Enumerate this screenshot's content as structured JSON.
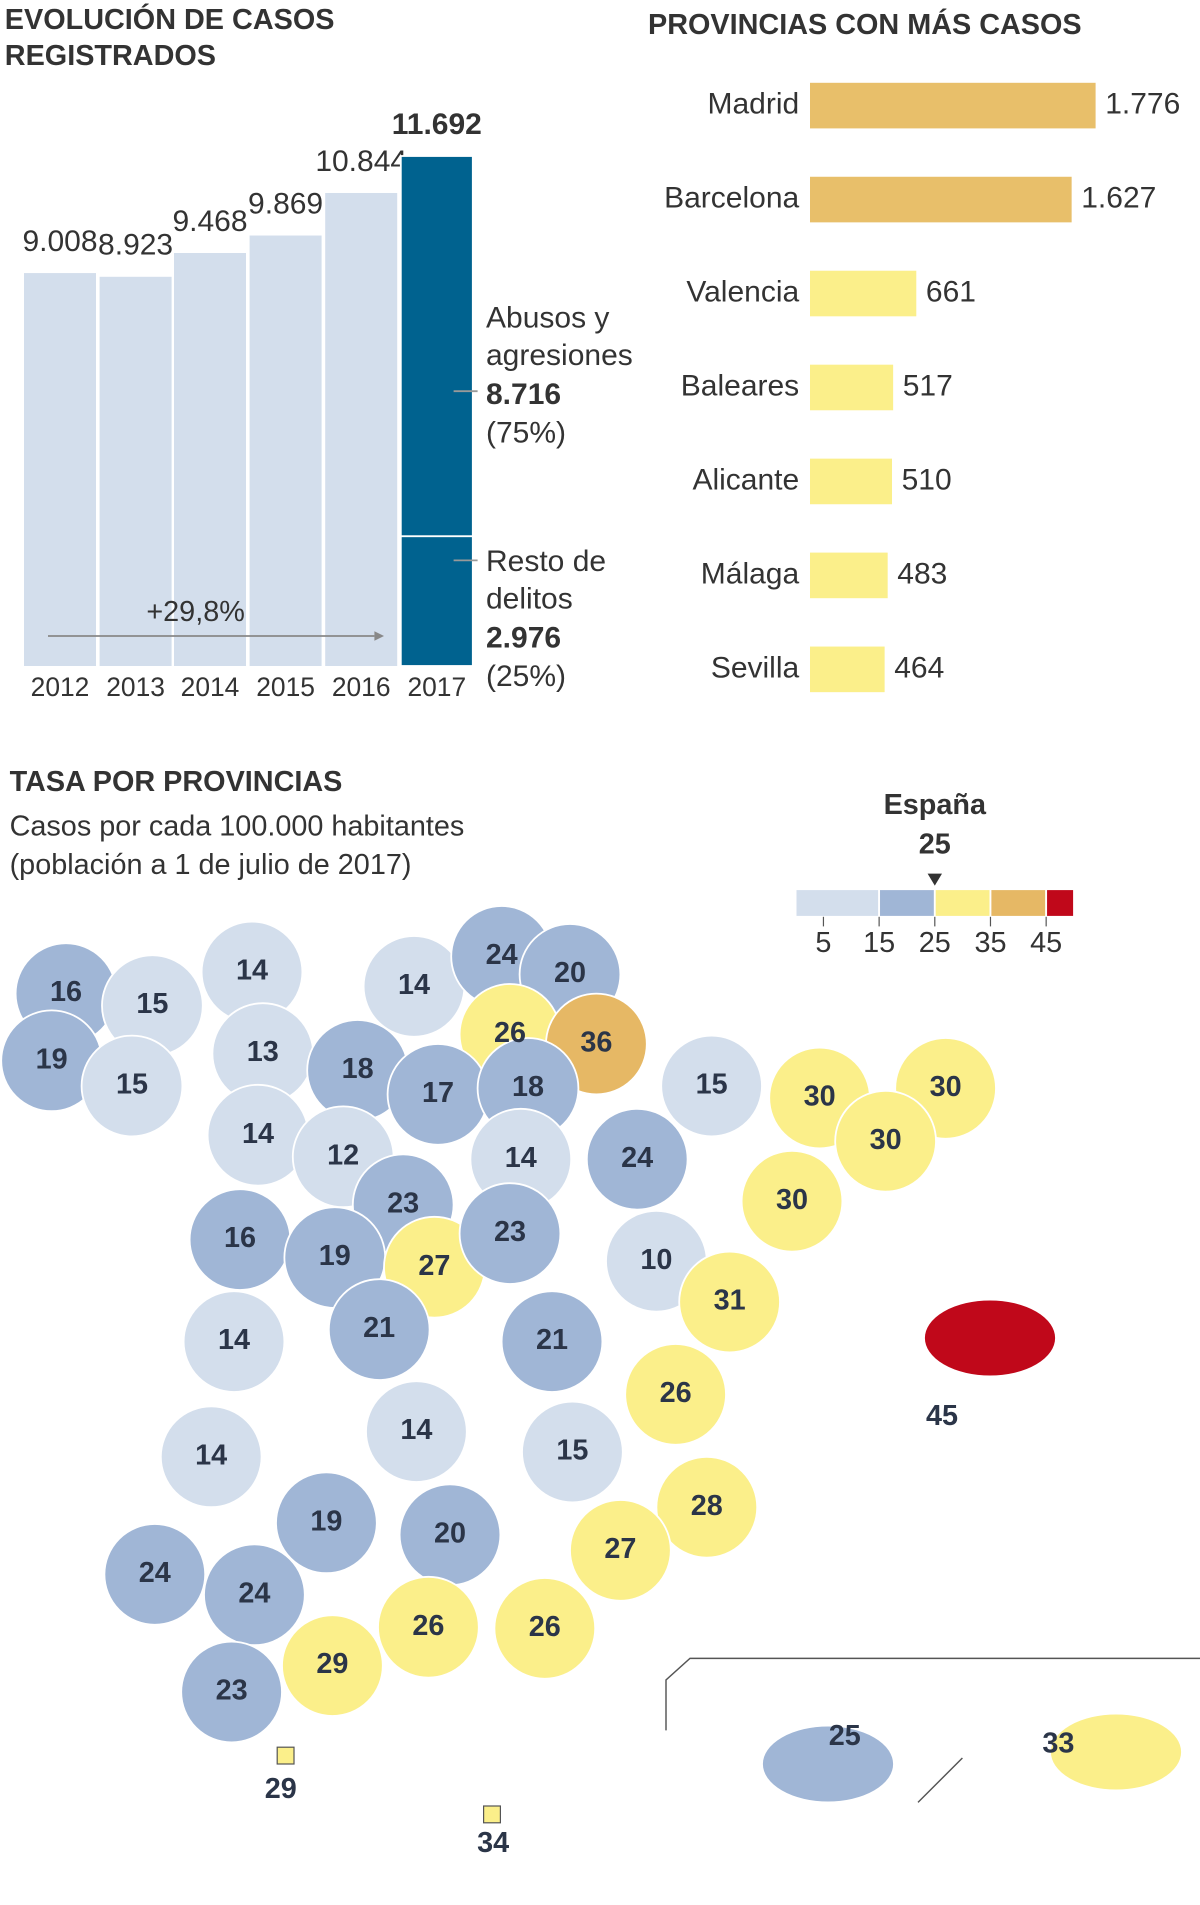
{
  "chart_data": [
    {
      "type": "bar",
      "title": "EVOLUCIÓN DE CASOS REGISTRADOS",
      "categories": [
        "2012",
        "2013",
        "2014",
        "2015",
        "2016",
        "2017"
      ],
      "values": [
        9008,
        8923,
        9468,
        9869,
        10844,
        11692
      ],
      "value_labels": [
        "9.008",
        "8.923",
        "9.468",
        "9.869",
        "10.844",
        "11.692"
      ],
      "color": "#d3deec",
      "highlight_color": "#00628f",
      "annotation": "+29,8%",
      "breakdown": [
        {
          "name": "Resto de delitos",
          "value": 2976,
          "value_label": "2.976",
          "share_label": "(25%)"
        },
        {
          "name": "Abusos y agresiones",
          "value": 8716,
          "value_label": "8.716",
          "share_label": "(75%)"
        }
      ]
    },
    {
      "type": "hbar",
      "title": "PROVINCIAS CON MÁS CASOS",
      "categories": [
        "Madrid",
        "Barcelona",
        "Valencia",
        "Baleares",
        "Alicante",
        "Málaga",
        "Sevilla"
      ],
      "values": [
        1776,
        1627,
        661,
        517,
        510,
        483,
        464
      ],
      "value_labels": [
        "1.776",
        "1.627",
        "661",
        "517",
        "510",
        "483",
        "464"
      ],
      "colors": [
        "#e8bf6a",
        "#e8bf6a",
        "#fbef8a",
        "#fbef8a",
        "#fbef8a",
        "#fbef8a",
        "#fbef8a"
      ]
    },
    {
      "type": "choropleth",
      "title": "TASA POR PROVINCIAS",
      "subtitle": [
        "Casos por cada 100.000 habitantes",
        "(población a 1 de julio de 2017)"
      ],
      "values": [
        16,
        15,
        14,
        14,
        24,
        20,
        19,
        15,
        13,
        26,
        36,
        18,
        17,
        18,
        15,
        30,
        30,
        14,
        12,
        14,
        24,
        30,
        23,
        30,
        16,
        19,
        27,
        23,
        10,
        31,
        14,
        21,
        21,
        45,
        26,
        14,
        15,
        14,
        19,
        20,
        28,
        27,
        24,
        24,
        26,
        26,
        29,
        23,
        29,
        34,
        25,
        33
      ],
      "legend": {
        "title": "España",
        "reference": 25,
        "lim": [
          0,
          50
        ],
        "ticks": [
          5,
          15,
          25,
          35,
          45
        ],
        "colors": [
          "#d3deec",
          "#a0b6d6",
          "#fbef8a",
          "#e6b865",
          "#c0081a"
        ]
      }
    }
  ]
}
